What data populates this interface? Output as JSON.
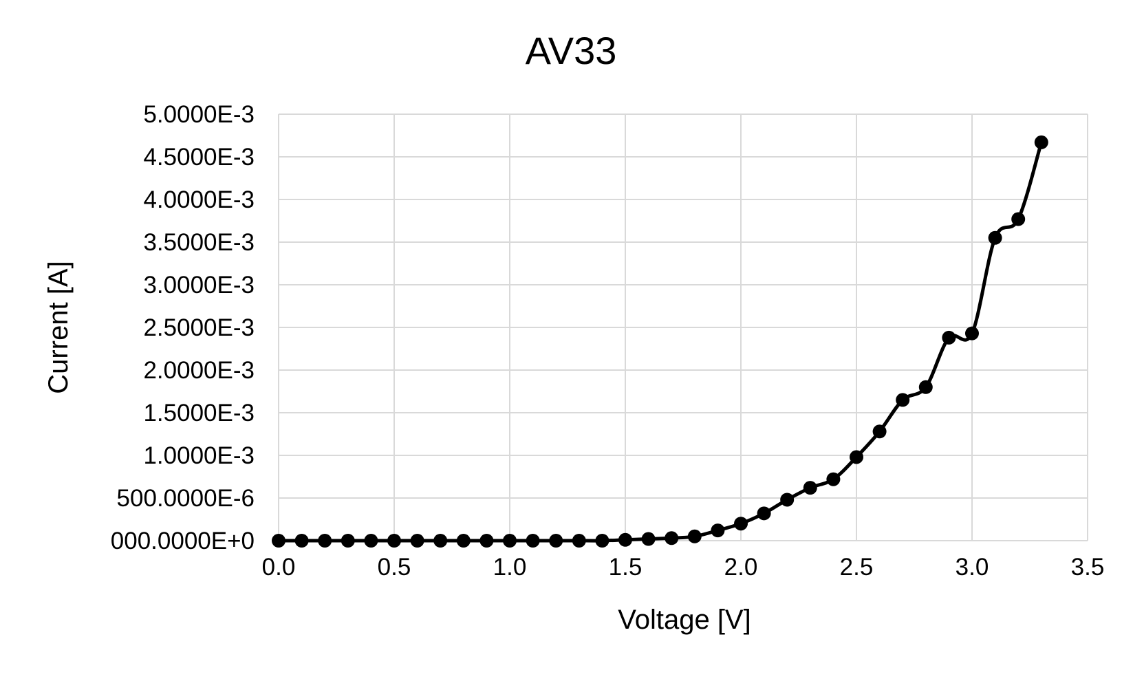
{
  "chart_data": {
    "type": "scatter",
    "title": "AV33",
    "xlabel": "Voltage [V]",
    "ylabel": "Current [A]",
    "xlim": [
      0,
      3.5
    ],
    "ylim": [
      0,
      0.005
    ],
    "x_ticks": [
      0.0,
      0.5,
      1.0,
      1.5,
      2.0,
      2.5,
      3.0,
      3.5
    ],
    "x_tick_labels": [
      "0.0",
      "0.5",
      "1.0",
      "1.5",
      "2.0",
      "2.5",
      "3.0",
      "3.5"
    ],
    "y_ticks": [
      0,
      0.0005,
      0.001,
      0.0015,
      0.002,
      0.0025,
      0.003,
      0.0035,
      0.004,
      0.0045,
      0.005
    ],
    "y_tick_labels": [
      "000.0000E+0",
      "500.0000E-6",
      "1.0000E-3",
      "1.5000E-3",
      "2.0000E-3",
      "2.5000E-3",
      "3.0000E-3",
      "3.5000E-3",
      "4.0000E-3",
      "4.5000E-3",
      "5.0000E-3"
    ],
    "grid": true,
    "legend": "none",
    "line_style": "smooth line with markers",
    "colors": {
      "series": "#000000",
      "grid": "#d9d9d9",
      "text": "#000000"
    },
    "series": [
      {
        "x": [
          0.0,
          0.1,
          0.2,
          0.3,
          0.4,
          0.5,
          0.6,
          0.7,
          0.8,
          0.9,
          1.0,
          1.1,
          1.2,
          1.3,
          1.4,
          1.5,
          1.6,
          1.7,
          1.8,
          1.9,
          2.0,
          2.1,
          2.2,
          2.3,
          2.4,
          2.5,
          2.6,
          2.7,
          2.8,
          2.9,
          3.0,
          3.1,
          3.2,
          3.3
        ],
        "y": [
          0,
          0,
          0,
          0,
          0,
          0,
          0,
          0,
          0,
          0,
          0,
          0,
          0,
          0,
          0,
          1e-05,
          2e-05,
          3e-05,
          5e-05,
          0.00012,
          0.0002,
          0.00032,
          0.00048,
          0.00062,
          0.00072,
          0.00098,
          0.00128,
          0.00165,
          0.0018,
          0.00238,
          0.00243,
          0.00355,
          0.00377,
          0.00467
        ]
      }
    ]
  }
}
